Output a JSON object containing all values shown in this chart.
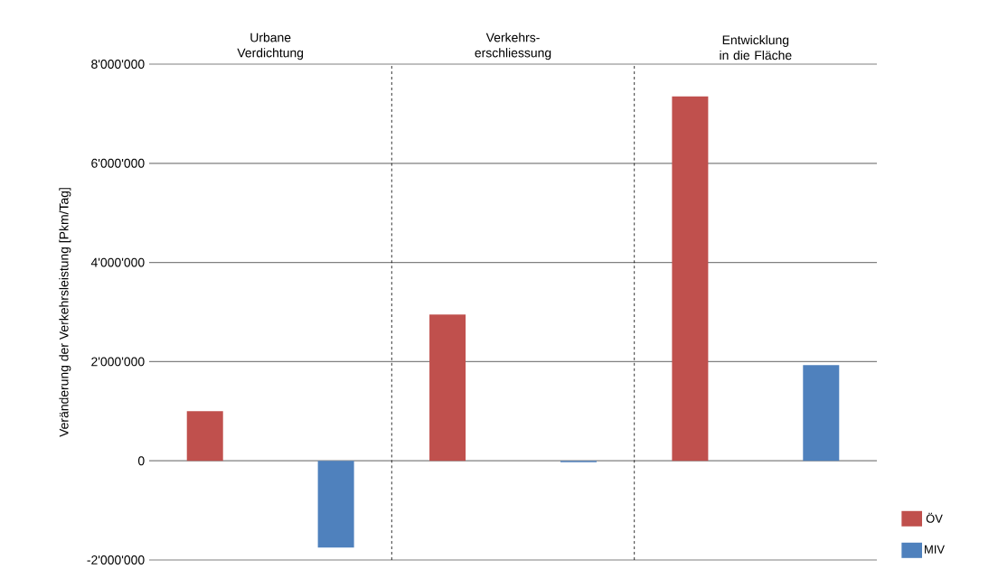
{
  "chart_data": {
    "type": "bar",
    "ylabel": "Veränderung der Verkehrsleistung [Pkm/Tag]",
    "categories": [
      "Urbane Verdichtung",
      "Verkehrs-erschliessung",
      "Entwicklung in die Fläche"
    ],
    "series": [
      {
        "name": "ÖV",
        "color": "#c0504d",
        "values": [
          1000000,
          2950000,
          7350000
        ]
      },
      {
        "name": "MIV",
        "color": "#4f81bd",
        "values": [
          -1750000,
          -30000,
          1930000
        ]
      }
    ],
    "ylim": [
      -2000000,
      8000000
    ],
    "yticks": [
      {
        "value": -2000000,
        "label": "-2'000'000"
      },
      {
        "value": 0,
        "label": "0"
      },
      {
        "value": 2000000,
        "label": "2'000'000"
      },
      {
        "value": 4000000,
        "label": "4'000'000"
      },
      {
        "value": 6000000,
        "label": "6'000'000"
      },
      {
        "value": 8000000,
        "label": "8'000'000"
      }
    ],
    "grid": "y",
    "legend": "bottom right"
  }
}
